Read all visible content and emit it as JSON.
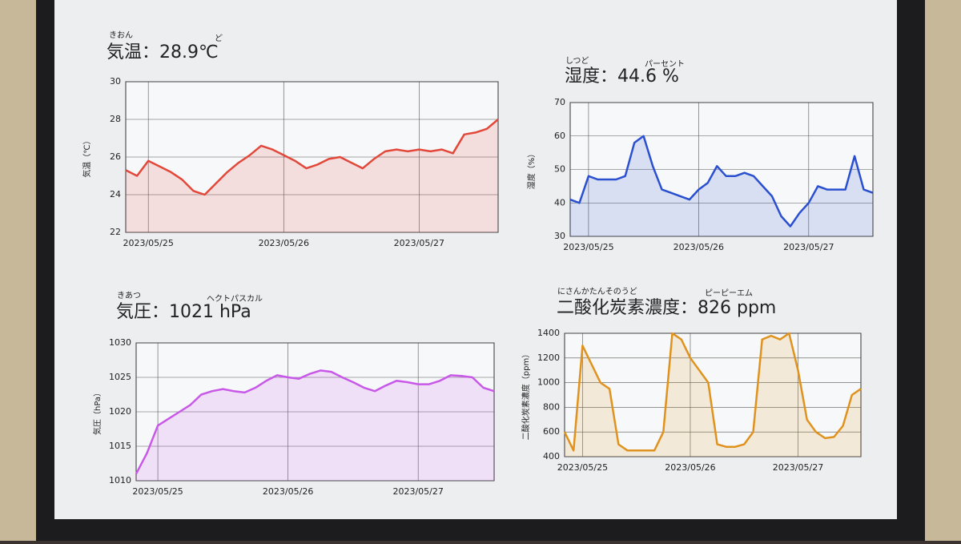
{
  "chart_data": [
    {
      "type": "line",
      "title": "気温：28.9℃",
      "title_ruby": [
        "きおん",
        "ど"
      ],
      "ylabel": "気温（℃）",
      "color": "#e2483a",
      "categories": [
        null,
        null,
        "2023/05/25",
        null,
        null,
        null,
        null,
        null,
        null,
        null,
        null,
        null,
        null,
        null,
        "2023/05/26",
        null,
        null,
        null,
        null,
        null,
        null,
        null,
        null,
        null,
        null,
        null,
        "2023/05/27",
        null,
        null,
        null,
        null,
        null,
        null,
        null
      ],
      "values": [
        25.3,
        25.0,
        25.8,
        25.5,
        25.2,
        24.8,
        24.2,
        24.0,
        24.6,
        25.2,
        25.7,
        26.1,
        26.6,
        26.4,
        26.1,
        25.8,
        25.4,
        25.6,
        25.9,
        26.0,
        25.7,
        25.4,
        25.9,
        26.3,
        26.4,
        26.3,
        26.4,
        26.3,
        26.4,
        26.2,
        27.2,
        27.3,
        27.5,
        28.0
      ],
      "ylim": [
        22,
        30
      ],
      "yticks": [
        22,
        24,
        26,
        28,
        30
      ],
      "grid": true
    },
    {
      "type": "line",
      "title": "湿度：44.6 %",
      "title_ruby": [
        "しつど",
        "パーセント"
      ],
      "ylabel": "湿度（%）",
      "color": "#2a50d0",
      "categories": [
        null,
        null,
        "2023/05/25",
        null,
        null,
        null,
        null,
        null,
        null,
        null,
        null,
        null,
        null,
        null,
        "2023/05/26",
        null,
        null,
        null,
        null,
        null,
        null,
        null,
        null,
        null,
        null,
        null,
        "2023/05/27",
        null,
        null,
        null,
        null,
        null,
        null,
        null
      ],
      "values": [
        41,
        40,
        48,
        47,
        47,
        47,
        48,
        58,
        60,
        51,
        44,
        43,
        42,
        41,
        44,
        46,
        51,
        48,
        48,
        49,
        48,
        45,
        42,
        36,
        33,
        37,
        40,
        45,
        44,
        44,
        44,
        54,
        44,
        43
      ],
      "ylim": [
        30,
        70
      ],
      "yticks": [
        30,
        40,
        50,
        60,
        70
      ],
      "grid": true
    },
    {
      "type": "line",
      "title": "気圧：1021 hPa",
      "title_ruby": [
        "きあつ",
        "ヘクトパスカル"
      ],
      "ylabel": "気圧（hPa）",
      "color": "#c858e8",
      "categories": [
        null,
        null,
        "2023/05/25",
        null,
        null,
        null,
        null,
        null,
        null,
        null,
        null,
        null,
        null,
        null,
        "2023/05/26",
        null,
        null,
        null,
        null,
        null,
        null,
        null,
        null,
        null,
        null,
        null,
        "2023/05/27",
        null,
        null,
        null,
        null,
        null,
        null,
        null
      ],
      "values": [
        1011,
        1014,
        1018,
        1019,
        1020,
        1021,
        1022.5,
        1023,
        1023.3,
        1023,
        1022.8,
        1023.5,
        1024.5,
        1025.3,
        1025,
        1024.8,
        1025.5,
        1026,
        1025.8,
        1025,
        1024.3,
        1023.5,
        1023,
        1023.8,
        1024.5,
        1024.3,
        1024,
        1024,
        1024.5,
        1025.3,
        1025.2,
        1025,
        1023.5,
        1023
      ],
      "ylim": [
        1010,
        1030
      ],
      "yticks": [
        1010,
        1015,
        1020,
        1025,
        1030
      ],
      "grid": true
    },
    {
      "type": "line",
      "title": "二酸化炭素濃度：826 ppm",
      "title_ruby": [
        "にさんかたんそのうど",
        "ピーピーエム"
      ],
      "ylabel": "二酸化炭素濃度（ppm）",
      "color": "#e0921e",
      "categories": [
        null,
        null,
        "2023/05/25",
        null,
        null,
        null,
        null,
        null,
        null,
        null,
        null,
        null,
        null,
        null,
        "2023/05/26",
        null,
        null,
        null,
        null,
        null,
        null,
        null,
        null,
        null,
        null,
        null,
        "2023/05/27",
        null,
        null,
        null,
        null,
        null,
        null,
        null
      ],
      "values": [
        600,
        450,
        1300,
        1150,
        1000,
        950,
        500,
        450,
        450,
        450,
        450,
        600,
        1400,
        1350,
        1200,
        1100,
        1000,
        500,
        480,
        480,
        500,
        600,
        1350,
        1380,
        1350,
        1400,
        1100,
        700,
        600,
        550,
        560,
        650,
        900,
        950
      ],
      "ylim": [
        400,
        1400
      ],
      "yticks": [
        400,
        600,
        800,
        1000,
        1200,
        1400
      ],
      "grid": true
    }
  ]
}
